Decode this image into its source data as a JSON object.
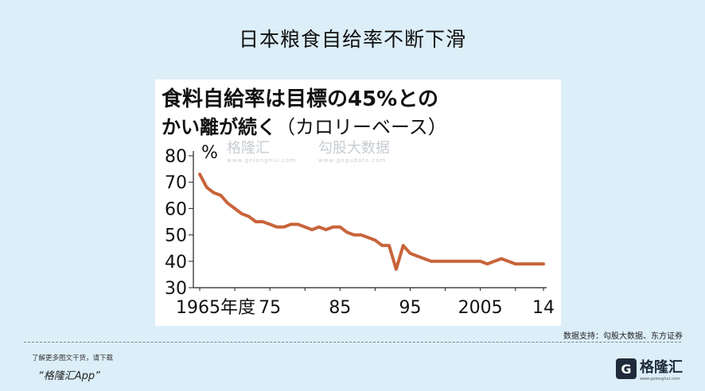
{
  "slide": {
    "title": "日本粮食自给率不断下滑"
  },
  "watermarks": {
    "brand": "格隆汇",
    "brand_url": "www.gelonghui.com",
    "partner": "勾股大数据",
    "partner_url": "www.gogudata.com"
  },
  "chart_data": {
    "type": "line",
    "title_line1": "食料自給率は目標の45%との",
    "title_line2": "かい離が続く",
    "subtitle": "（カロリーベース）",
    "ylabel": "%",
    "xlabel": "",
    "ylim": [
      30,
      80
    ],
    "xlim": [
      1965,
      2014
    ],
    "yticks": [
      "80",
      "70",
      "60",
      "50",
      "40",
      "30"
    ],
    "xtick_labels": [
      {
        "x": 1965,
        "label": "1965年度"
      },
      {
        "x": 1975,
        "label": "75"
      },
      {
        "x": 1985,
        "label": "85"
      },
      {
        "x": 1995,
        "label": "95"
      },
      {
        "x": 2005,
        "label": "2005"
      },
      {
        "x": 2014,
        "label": "14"
      }
    ],
    "line_color": "#c8643a",
    "series": [
      {
        "x": [
          1965,
          1966,
          1967,
          1968,
          1969,
          1970,
          1971,
          1972,
          1973,
          1974,
          1975,
          1976,
          1977,
          1978,
          1979,
          1980,
          1981,
          1982,
          1983,
          1984,
          1985,
          1986,
          1987,
          1988,
          1989,
          1990,
          1991,
          1992,
          1993,
          1994,
          1995,
          1996,
          1997,
          1998,
          1999,
          2000,
          2001,
          2002,
          2003,
          2004,
          2005,
          2006,
          2007,
          2008,
          2009,
          2010,
          2011,
          2012,
          2013,
          2014
        ],
        "values": [
          73,
          68,
          66,
          65,
          62,
          60,
          58,
          57,
          55,
          55,
          54,
          53,
          53,
          54,
          54,
          53,
          52,
          53,
          52,
          53,
          53,
          51,
          50,
          50,
          49,
          48,
          46,
          46,
          37,
          46,
          43,
          42,
          41,
          40,
          40,
          40,
          40,
          40,
          40,
          40,
          40,
          39,
          40,
          41,
          40,
          39,
          39,
          39,
          39,
          39
        ]
      }
    ]
  },
  "source": "数据支持：勾股大数据、东方证券",
  "footer": {
    "hint": "了解更多图文干货，请下载",
    "app": "“格隆汇App”",
    "logo_text": "格隆汇",
    "logo_url": "www.gelonghui.com"
  }
}
